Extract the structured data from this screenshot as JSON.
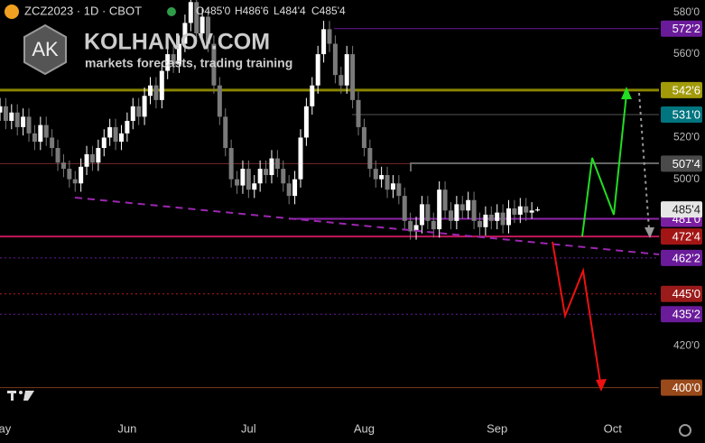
{
  "header": {
    "symbol": "ZCZ2023 · 1D · CBOT",
    "ohlc": [
      "O485'0",
      "H486'6",
      "L484'4",
      "C485'4"
    ]
  },
  "logo": {
    "mark": "AK",
    "title": "KOLHANOV.COM",
    "subtitle": "markets forecasts, trading training"
  },
  "chart_data": {
    "type": "candlestick",
    "up_color": "#ffffff",
    "down_color": "#7a7a7a",
    "ylim": [
      386,
      586
    ],
    "yticks": [
      {
        "value": 580,
        "label": "580'0"
      },
      {
        "value": 560,
        "label": "560'0"
      },
      {
        "value": 520,
        "label": "520'0"
      },
      {
        "value": 500,
        "label": "500'0"
      },
      {
        "value": 420,
        "label": "420'0"
      }
    ],
    "xlim": [
      0,
      114
    ],
    "xticks": [
      {
        "value": 0,
        "label": "May"
      },
      {
        "value": 22,
        "label": "Jun"
      },
      {
        "value": 43,
        "label": "Jul"
      },
      {
        "value": 63,
        "label": "Aug"
      },
      {
        "value": 86,
        "label": "Sep"
      },
      {
        "value": 106,
        "label": "Oct"
      }
    ],
    "candles": [
      [
        532,
        539,
        528,
        535
      ],
      [
        535,
        539,
        524,
        528
      ],
      [
        528,
        536,
        524,
        532
      ],
      [
        532,
        536,
        521,
        525
      ],
      [
        525,
        534,
        521,
        530
      ],
      [
        530,
        534,
        518,
        522
      ],
      [
        522,
        526,
        514,
        518
      ],
      [
        518,
        530,
        514,
        526
      ],
      [
        526,
        530,
        516,
        520
      ],
      [
        520,
        524,
        511,
        515
      ],
      [
        515,
        519,
        504,
        508
      ],
      [
        508,
        512,
        501,
        505
      ],
      [
        505,
        509,
        496,
        500
      ],
      [
        500,
        504,
        494,
        498
      ],
      [
        498,
        510,
        494,
        506
      ],
      [
        506,
        516,
        502,
        512
      ],
      [
        512,
        516,
        504,
        508
      ],
      [
        508,
        519,
        504,
        515
      ],
      [
        515,
        524,
        511,
        520
      ],
      [
        520,
        529,
        516,
        525
      ],
      [
        525,
        529,
        514,
        518
      ],
      [
        518,
        526,
        514,
        522
      ],
      [
        522,
        532,
        518,
        528
      ],
      [
        528,
        539,
        524,
        535
      ],
      [
        535,
        539,
        526,
        530
      ],
      [
        530,
        544,
        526,
        540
      ],
      [
        540,
        549,
        536,
        545
      ],
      [
        545,
        549,
        534,
        538
      ],
      [
        538,
        556,
        534,
        552
      ],
      [
        552,
        564,
        548,
        560
      ],
      [
        560,
        564,
        551,
        555
      ],
      [
        555,
        569,
        551,
        565
      ],
      [
        565,
        579,
        561,
        575
      ],
      [
        575,
        589,
        571,
        585
      ],
      [
        585,
        589,
        566,
        570
      ],
      [
        570,
        582,
        566,
        578
      ],
      [
        578,
        582,
        561,
        565
      ],
      [
        565,
        569,
        541,
        545
      ],
      [
        545,
        549,
        526,
        530
      ],
      [
        530,
        534,
        511,
        515
      ],
      [
        515,
        519,
        496,
        500
      ],
      [
        500,
        504,
        493,
        497
      ],
      [
        497,
        509,
        493,
        505
      ],
      [
        505,
        509,
        491,
        495
      ],
      [
        495,
        502,
        491,
        498
      ],
      [
        498,
        509,
        494,
        505
      ],
      [
        505,
        509,
        498,
        502
      ],
      [
        502,
        514,
        498,
        510
      ],
      [
        510,
        514,
        501,
        505
      ],
      [
        505,
        509,
        494,
        498
      ],
      [
        498,
        502,
        488,
        492
      ],
      [
        492,
        504,
        488,
        500
      ],
      [
        500,
        524,
        496,
        520
      ],
      [
        520,
        539,
        516,
        535
      ],
      [
        535,
        549,
        531,
        545
      ],
      [
        545,
        564,
        541,
        560
      ],
      [
        560,
        576,
        556,
        572
      ],
      [
        572,
        576,
        561,
        565
      ],
      [
        565,
        569,
        546,
        550
      ],
      [
        550,
        554,
        541,
        545
      ],
      [
        545,
        564,
        541,
        560
      ],
      [
        560,
        564,
        534,
        538
      ],
      [
        538,
        542,
        521,
        525
      ],
      [
        525,
        529,
        511,
        515
      ],
      [
        515,
        519,
        501,
        505
      ],
      [
        505,
        509,
        496,
        500
      ],
      [
        500,
        506,
        496,
        502
      ],
      [
        502,
        506,
        491,
        495
      ],
      [
        495,
        502,
        491,
        498
      ],
      [
        498,
        502,
        488,
        492
      ],
      [
        492,
        496,
        476,
        480
      ],
      [
        480,
        484,
        471,
        475
      ],
      [
        475,
        482,
        471,
        478
      ],
      [
        478,
        492,
        474,
        488
      ],
      [
        488,
        492,
        476,
        480
      ],
      [
        480,
        484,
        472,
        476
      ],
      [
        476,
        499,
        472,
        495
      ],
      [
        495,
        499,
        481,
        485
      ],
      [
        485,
        489,
        476,
        480
      ],
      [
        480,
        492,
        476,
        488
      ],
      [
        488,
        492,
        481,
        485
      ],
      [
        485,
        494,
        481,
        490
      ],
      [
        490,
        494,
        476,
        480
      ],
      [
        480,
        484,
        473,
        477
      ],
      [
        477,
        487,
        473,
        483
      ],
      [
        483,
        487,
        476,
        480
      ],
      [
        480,
        488,
        476,
        484
      ],
      [
        484,
        488,
        474,
        478
      ],
      [
        478,
        490,
        474,
        486
      ],
      [
        486,
        490,
        479,
        483
      ],
      [
        483,
        491,
        479,
        487
      ],
      [
        487,
        491,
        480,
        484
      ],
      [
        484,
        489,
        481,
        485
      ],
      [
        485,
        486.75,
        484.5,
        485.5
      ]
    ],
    "levels": [
      {
        "value": 572.25,
        "label": "572'2",
        "color": "#6a1b9a",
        "line_color": "#6a1b9a",
        "style": "solid"
      },
      {
        "value": 542.75,
        "label": "542'6",
        "color": "#a39a0a",
        "line_color": "#8a8600",
        "style": "thick"
      },
      {
        "value": 531,
        "label": "531'0",
        "color": "#00757f",
        "line_color": "#555555",
        "style": "solid"
      },
      {
        "value": 507.5,
        "label": "507'4",
        "color": "#4a4a4a",
        "line_color": "#7a2a2a",
        "style": "solid"
      },
      {
        "value": 481,
        "label": "481'0",
        "color": "#7b1fa2",
        "line_color": "#8e24aa",
        "style": "medium"
      },
      {
        "value": 485.5,
        "label": "485'4",
        "color": "#e6e6e6",
        "line_color": "#444444",
        "style": "none"
      },
      {
        "value": 472.5,
        "label": "472'4",
        "color": "#a31515",
        "line_color": "#c2185b",
        "style": "medium"
      },
      {
        "value": 462.25,
        "label": "462'2",
        "color": "#6a1b9a",
        "line_color": "#6a1b9a",
        "style": "dotted"
      },
      {
        "value": 445,
        "label": "445'0",
        "color": "#9b1b1b",
        "line_color": "#b71c1c",
        "style": "dotted"
      },
      {
        "value": 435.25,
        "label": "435'2",
        "color": "#6a1b9a",
        "line_color": "#6a1b9a",
        "style": "dotted"
      },
      {
        "value": 400,
        "label": "400'0",
        "color": "#9a4a1a",
        "line_color": "#7a3a1a",
        "style": "solid"
      }
    ]
  }
}
